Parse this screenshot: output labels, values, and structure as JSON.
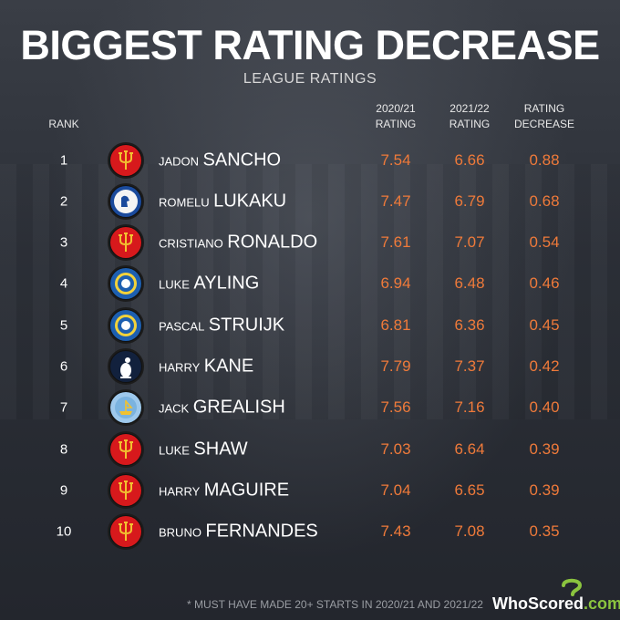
{
  "title": "BIGGEST RATING DECREASE",
  "subtitle": "LEAGUE RATINGS",
  "headers": {
    "rank": "RANK",
    "col1_line1": "2020/21",
    "col1_line2": "RATING",
    "col2_line1": "2021/22",
    "col2_line2": "RATING",
    "col3_line1": "RATING",
    "col3_line2": "DECREASE"
  },
  "rows": [
    {
      "rank": "1",
      "first": "JADON",
      "last": "SANCHO",
      "club_icon": "man-utd-crest-icon",
      "r2021": "7.54",
      "r2122": "6.66",
      "decrease": "0.88"
    },
    {
      "rank": "2",
      "first": "ROMELU",
      "last": "LUKAKU",
      "club_icon": "chelsea-crest-icon",
      "r2021": "7.47",
      "r2122": "6.79",
      "decrease": "0.68"
    },
    {
      "rank": "3",
      "first": "CRISTIANO",
      "last": "RONALDO",
      "club_icon": "man-utd-crest-icon",
      "r2021": "7.61",
      "r2122": "7.07",
      "decrease": "0.54"
    },
    {
      "rank": "4",
      "first": "LUKE",
      "last": "AYLING",
      "club_icon": "leeds-crest-icon",
      "r2021": "6.94",
      "r2122": "6.48",
      "decrease": "0.46"
    },
    {
      "rank": "5",
      "first": "PASCAL",
      "last": "STRUIJK",
      "club_icon": "leeds-crest-icon",
      "r2021": "6.81",
      "r2122": "6.36",
      "decrease": "0.45"
    },
    {
      "rank": "6",
      "first": "HARRY",
      "last": "KANE",
      "club_icon": "tottenham-crest-icon",
      "r2021": "7.79",
      "r2122": "7.37",
      "decrease": "0.42"
    },
    {
      "rank": "7",
      "first": "JACK",
      "last": "GREALISH",
      "club_icon": "man-city-crest-icon",
      "r2021": "7.56",
      "r2122": "7.16",
      "decrease": "0.40"
    },
    {
      "rank": "8",
      "first": "LUKE",
      "last": "SHAW",
      "club_icon": "man-utd-crest-icon",
      "r2021": "7.03",
      "r2122": "6.64",
      "decrease": "0.39"
    },
    {
      "rank": "9",
      "first": "HARRY",
      "last": "MAGUIRE",
      "club_icon": "man-utd-crest-icon",
      "r2021": "7.04",
      "r2122": "6.65",
      "decrease": "0.39"
    },
    {
      "rank": "10",
      "first": "BRUNO",
      "last": "FERNANDES",
      "club_icon": "man-utd-crest-icon",
      "r2021": "7.43",
      "r2122": "7.08",
      "decrease": "0.35"
    }
  ],
  "footer_note": "* MUST HAVE MADE 20+ STARTS IN 2020/21 AND 2021/22",
  "brand": {
    "part1": "WhoScored",
    "part2": ".com"
  },
  "colors": {
    "accent": "#ef7a3a",
    "brand_green": "#8bc43f",
    "man_utd_red": "#d7191c"
  }
}
